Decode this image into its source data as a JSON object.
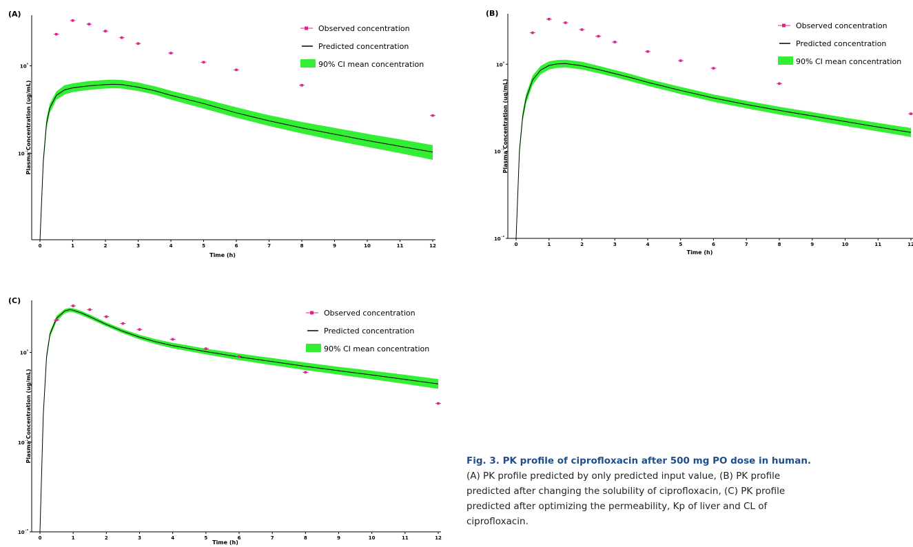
{
  "caption": {
    "title": "Fig. 3. PK profile of ciprofloxacin after 500 mg PO dose in human.",
    "lines": [
      "(A) PK profile predicted by only predicted input value, (B) PK profile",
      "predicted after changing the solubility of ciprofloxacin, (C) PK profile",
      "predicted after optimizing the permeability, Kp of liver and CL of",
      "ciprofloxacin."
    ]
  },
  "chart_data": [
    {
      "panel": "(A)",
      "type": "line",
      "xlabel": "Time (h)",
      "ylabel": "Plasma Concentration (ug/mL)",
      "y_scale": "log",
      "xlim": [
        0,
        12
      ],
      "ylim_log10": [
        -1.99,
        0.58
      ],
      "x_ticks": [
        0,
        1,
        2,
        3,
        4,
        5,
        6,
        7,
        8,
        9,
        10,
        11,
        12
      ],
      "y_ticks": [
        {
          "value": 1,
          "label": "10⁰"
        },
        {
          "value": 0.1,
          "label": "10⁻¹"
        }
      ],
      "legend": {
        "position": "top-right",
        "entries": [
          "Observed concentration",
          "Predicted concentration",
          "90% CI mean concentration"
        ]
      },
      "series": [
        {
          "name": "Observed concentration",
          "kind": "scatter",
          "color": "#e0218a",
          "x": [
            0.5,
            1,
            1.5,
            2,
            2.5,
            3,
            4,
            5,
            6,
            8,
            12
          ],
          "y": [
            2.3,
            3.3,
            3.0,
            2.5,
            2.1,
            1.8,
            1.4,
            1.1,
            0.9,
            0.6,
            0.27
          ]
        },
        {
          "name": "Predicted concentration",
          "kind": "line",
          "color": "#000000",
          "x": [
            0,
            0.1,
            0.2,
            0.3,
            0.5,
            0.75,
            1,
            1.5,
            2,
            2.25,
            2.5,
            3,
            3.5,
            4,
            5,
            6,
            7,
            8,
            9,
            10,
            11,
            12
          ],
          "y": [
            0.01,
            0.08,
            0.22,
            0.33,
            0.46,
            0.53,
            0.56,
            0.59,
            0.61,
            0.615,
            0.61,
            0.57,
            0.52,
            0.46,
            0.37,
            0.29,
            0.235,
            0.195,
            0.165,
            0.14,
            0.12,
            0.103
          ]
        },
        {
          "name": "90% CI mean concentration",
          "kind": "band",
          "color": "#33ee33",
          "x": [
            0,
            0.1,
            0.2,
            0.3,
            0.5,
            0.75,
            1,
            1.5,
            2,
            2.25,
            2.5,
            3,
            3.5,
            4,
            5,
            6,
            7,
            8,
            9,
            10,
            11,
            12
          ],
          "lower": [
            0.009,
            0.07,
            0.19,
            0.29,
            0.41,
            0.47,
            0.5,
            0.53,
            0.55,
            0.555,
            0.55,
            0.515,
            0.47,
            0.41,
            0.325,
            0.255,
            0.205,
            0.168,
            0.14,
            0.118,
            0.1,
            0.084
          ],
          "upper": [
            0.011,
            0.09,
            0.25,
            0.37,
            0.51,
            0.6,
            0.63,
            0.67,
            0.69,
            0.695,
            0.69,
            0.645,
            0.585,
            0.52,
            0.42,
            0.335,
            0.272,
            0.228,
            0.195,
            0.167,
            0.144,
            0.124
          ]
        }
      ]
    },
    {
      "panel": "(B)",
      "type": "line",
      "xlabel": "Time (h)",
      "ylabel": "Plasma Concentration (ug/mL)",
      "y_scale": "log",
      "xlim": [
        0,
        12
      ],
      "ylim_log10": [
        -2.0,
        0.58
      ],
      "x_ticks": [
        0,
        1,
        2,
        3,
        4,
        5,
        6,
        7,
        8,
        9,
        10,
        11,
        12
      ],
      "y_ticks": [
        {
          "value": 1,
          "label": "10⁰"
        },
        {
          "value": 0.1,
          "label": "10⁻¹"
        },
        {
          "value": 0.01,
          "label": "10⁻²"
        }
      ],
      "legend": {
        "position": "top-right",
        "entries": [
          "Observed concentration",
          "Predicted concentration",
          "90% CI mean concentration"
        ]
      },
      "series": [
        {
          "name": "Observed concentration",
          "kind": "scatter",
          "color": "#e0218a",
          "x": [
            0.5,
            1,
            1.5,
            2,
            2.5,
            3,
            4,
            5,
            6,
            8,
            12
          ],
          "y": [
            2.3,
            3.3,
            3.0,
            2.5,
            2.1,
            1.8,
            1.4,
            1.1,
            0.9,
            0.6,
            0.27
          ]
        },
        {
          "name": "Predicted concentration",
          "kind": "line",
          "color": "#000000",
          "x": [
            0,
            0.1,
            0.2,
            0.3,
            0.5,
            0.75,
            1,
            1.25,
            1.5,
            2,
            2.5,
            3,
            3.5,
            4,
            5,
            6,
            7,
            8,
            9,
            10,
            11,
            12
          ],
          "y": [
            0.01,
            0.1,
            0.25,
            0.4,
            0.66,
            0.86,
            0.97,
            1.01,
            1.02,
            0.96,
            0.87,
            0.78,
            0.7,
            0.62,
            0.5,
            0.41,
            0.345,
            0.295,
            0.255,
            0.22,
            0.19,
            0.165
          ]
        },
        {
          "name": "90% CI mean concentration",
          "kind": "band",
          "color": "#33ee33",
          "x": [
            0,
            0.1,
            0.2,
            0.3,
            0.5,
            0.75,
            1,
            1.25,
            1.5,
            2,
            2.5,
            3,
            3.5,
            4,
            5,
            6,
            7,
            8,
            9,
            10,
            11,
            12
          ],
          "lower": [
            0.009,
            0.088,
            0.22,
            0.35,
            0.58,
            0.77,
            0.87,
            0.91,
            0.92,
            0.87,
            0.79,
            0.71,
            0.635,
            0.565,
            0.455,
            0.37,
            0.312,
            0.265,
            0.228,
            0.196,
            0.169,
            0.146
          ],
          "upper": [
            0.011,
            0.112,
            0.28,
            0.45,
            0.74,
            0.96,
            1.08,
            1.12,
            1.13,
            1.07,
            0.96,
            0.86,
            0.77,
            0.68,
            0.55,
            0.45,
            0.38,
            0.325,
            0.282,
            0.244,
            0.212,
            0.185
          ]
        }
      ]
    },
    {
      "panel": "(C)",
      "type": "line",
      "xlabel": "Time (h)",
      "ylabel": "Plasma Concentration (ug/mL)",
      "y_scale": "log",
      "xlim": [
        0,
        12
      ],
      "ylim_log10": [
        -2.0,
        0.58
      ],
      "x_ticks": [
        0,
        1,
        2,
        3,
        4,
        5,
        6,
        7,
        8,
        9,
        10,
        11,
        12
      ],
      "y_ticks": [
        {
          "value": 1,
          "label": "10⁰"
        },
        {
          "value": 0.1,
          "label": "10⁻¹"
        },
        {
          "value": 0.01,
          "label": "10⁻²"
        }
      ],
      "legend": {
        "position": "top-right",
        "entries": [
          "Observed concentration",
          "Predicted concentration",
          "90% CI mean concentration"
        ]
      },
      "series": [
        {
          "name": "Observed concentration",
          "kind": "scatter",
          "color": "#e0218a",
          "x": [
            0.5,
            1,
            1.5,
            2,
            2.5,
            3,
            4,
            5,
            6,
            8,
            12
          ],
          "y": [
            2.3,
            3.3,
            3.0,
            2.5,
            2.1,
            1.8,
            1.4,
            1.1,
            0.9,
            0.6,
            0.27
          ]
        },
        {
          "name": "Predicted concentration",
          "kind": "line",
          "color": "#000000",
          "x": [
            0,
            0.1,
            0.2,
            0.3,
            0.5,
            0.75,
            0.9,
            1,
            1.25,
            1.5,
            2,
            2.5,
            3,
            3.5,
            4,
            5,
            6,
            7,
            8,
            9,
            10,
            11,
            12
          ],
          "y": [
            0.01,
            0.2,
            0.9,
            1.6,
            2.4,
            2.9,
            3.0,
            2.95,
            2.75,
            2.5,
            2.05,
            1.72,
            1.48,
            1.31,
            1.19,
            1.02,
            0.89,
            0.79,
            0.7,
            0.625,
            0.56,
            0.5,
            0.445
          ]
        },
        {
          "name": "90% CI mean concentration",
          "kind": "band",
          "color": "#33ee33",
          "x": [
            0,
            0.1,
            0.2,
            0.3,
            0.5,
            0.75,
            0.9,
            1,
            1.25,
            1.5,
            2,
            2.5,
            3,
            3.5,
            4,
            5,
            6,
            7,
            8,
            9,
            10,
            11,
            12
          ],
          "lower": [
            0.009,
            0.18,
            0.82,
            1.48,
            2.22,
            2.72,
            2.84,
            2.8,
            2.6,
            2.37,
            1.95,
            1.63,
            1.4,
            1.23,
            1.11,
            0.95,
            0.82,
            0.72,
            0.635,
            0.565,
            0.502,
            0.445,
            0.392
          ],
          "upper": [
            0.011,
            0.22,
            0.98,
            1.72,
            2.56,
            3.05,
            3.15,
            3.1,
            2.9,
            2.64,
            2.16,
            1.82,
            1.57,
            1.4,
            1.28,
            1.1,
            0.97,
            0.865,
            0.77,
            0.69,
            0.625,
            0.563,
            0.505
          ]
        }
      ]
    }
  ]
}
